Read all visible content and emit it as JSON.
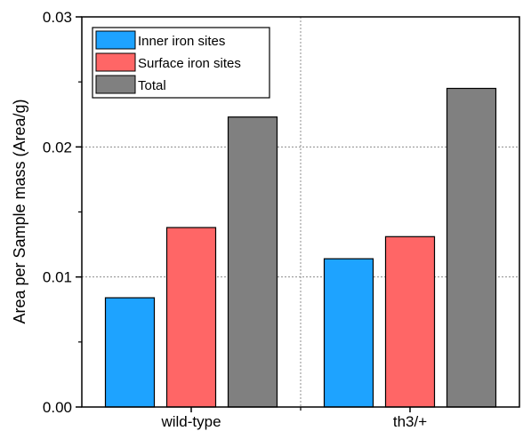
{
  "chart_data": {
    "type": "bar",
    "title": "",
    "xlabel": "",
    "ylabel": "Area per Sample mass (Area/g)",
    "categories": [
      "wild-type",
      "th3/+"
    ],
    "ylim": [
      0,
      0.03
    ],
    "yticks": [
      "0.00",
      "0.01",
      "0.02",
      "0.03"
    ],
    "grid": "dotted lines at major y ticks and between categories",
    "legend_position": "top-left",
    "series": [
      {
        "name": "Inner iron sites",
        "color": "#1ea3ff",
        "values": [
          0.0084,
          0.0114
        ]
      },
      {
        "name": "Surface iron sites",
        "color": "#ff6666",
        "values": [
          0.0138,
          0.0131
        ]
      },
      {
        "name": "Total",
        "color": "#808080",
        "values": [
          0.0223,
          0.0245
        ]
      }
    ]
  }
}
